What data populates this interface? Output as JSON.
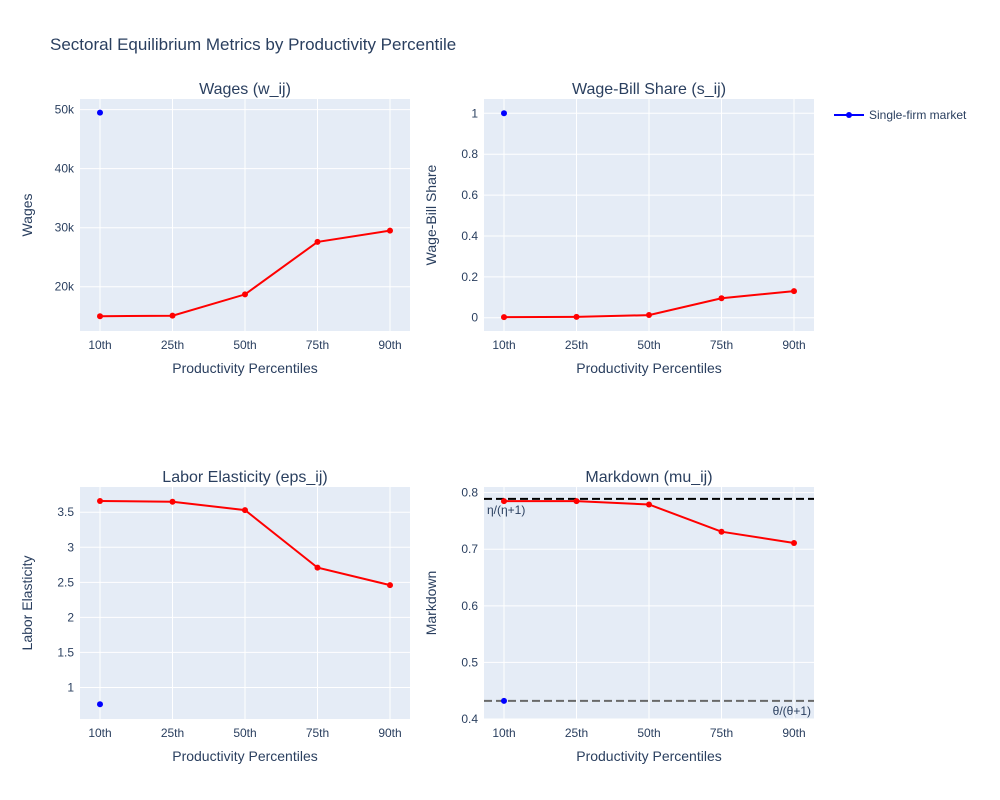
{
  "title": "Sectoral Equilibrium Metrics by Productivity Percentile",
  "legend": {
    "label": "Single-firm market",
    "color": "#0000ff"
  },
  "colors": {
    "main_series": "#ff0000",
    "single_firm": "#0000ff"
  },
  "chart_data": [
    {
      "type": "line",
      "title": "Wages (w_ij)",
      "xlabel": "Productivity Percentiles",
      "ylabel": "Wages",
      "categories": [
        "10th",
        "25th",
        "50th",
        "75th",
        "90th"
      ],
      "series": [
        {
          "values": [
            15000,
            15100,
            18700,
            27600,
            29500
          ]
        },
        {
          "name": "Single-firm market",
          "category": "10th",
          "value": 49500
        }
      ],
      "ylim": [
        12500,
        51800
      ],
      "yticks": [
        20000,
        30000,
        40000,
        50000
      ],
      "yticklabels": [
        "20k",
        "30k",
        "40k",
        "50k"
      ]
    },
    {
      "type": "line",
      "title": "Wage-Bill Share (s_ij)",
      "xlabel": "Productivity Percentiles",
      "ylabel": "Wage-Bill Share",
      "categories": [
        "10th",
        "25th",
        "50th",
        "75th",
        "90th"
      ],
      "series": [
        {
          "values": [
            0.003,
            0.004,
            0.013,
            0.095,
            0.13
          ]
        },
        {
          "name": "Single-firm market",
          "category": "10th",
          "value": 1.0
        }
      ],
      "ylim": [
        -0.065,
        1.07
      ],
      "yticks": [
        0,
        0.2,
        0.4,
        0.6,
        0.8,
        1
      ],
      "yticklabels": [
        "0",
        "0.2",
        "0.4",
        "0.6",
        "0.8",
        "1"
      ]
    },
    {
      "type": "line",
      "title": "Labor Elasticity (eps_ij)",
      "xlabel": "Productivity Percentiles",
      "ylabel": "Labor Elasticity",
      "categories": [
        "10th",
        "25th",
        "50th",
        "75th",
        "90th"
      ],
      "series": [
        {
          "values": [
            3.66,
            3.65,
            3.53,
            2.71,
            2.46
          ]
        },
        {
          "name": "Single-firm market",
          "category": "10th",
          "value": 0.76
        }
      ],
      "ylim": [
        0.55,
        3.86
      ],
      "yticks": [
        1,
        1.5,
        2,
        2.5,
        3,
        3.5
      ],
      "yticklabels": [
        "1",
        "1.5",
        "2",
        "2.5",
        "3",
        "3.5"
      ]
    },
    {
      "type": "line",
      "title": "Markdown (mu_ij)",
      "xlabel": "Productivity Percentiles",
      "ylabel": "Markdown",
      "categories": [
        "10th",
        "25th",
        "50th",
        "75th",
        "90th"
      ],
      "series": [
        {
          "values": [
            0.785,
            0.785,
            0.779,
            0.731,
            0.711
          ]
        },
        {
          "name": "Single-firm market",
          "category": "10th",
          "value": 0.432
        }
      ],
      "ylim": [
        0.4,
        0.81
      ],
      "yticks": [
        0.4,
        0.5,
        0.6,
        0.7,
        0.8
      ],
      "yticklabels": [
        "0.4",
        "0.5",
        "0.6",
        "0.7",
        "0.8"
      ],
      "reference_lines": [
        {
          "value": 0.789,
          "label": "η/(η+1)",
          "color": "#000000",
          "label_position": "left"
        },
        {
          "value": 0.432,
          "label": "θ/(θ+1)",
          "color": "#696969",
          "label_position": "right"
        }
      ]
    }
  ]
}
